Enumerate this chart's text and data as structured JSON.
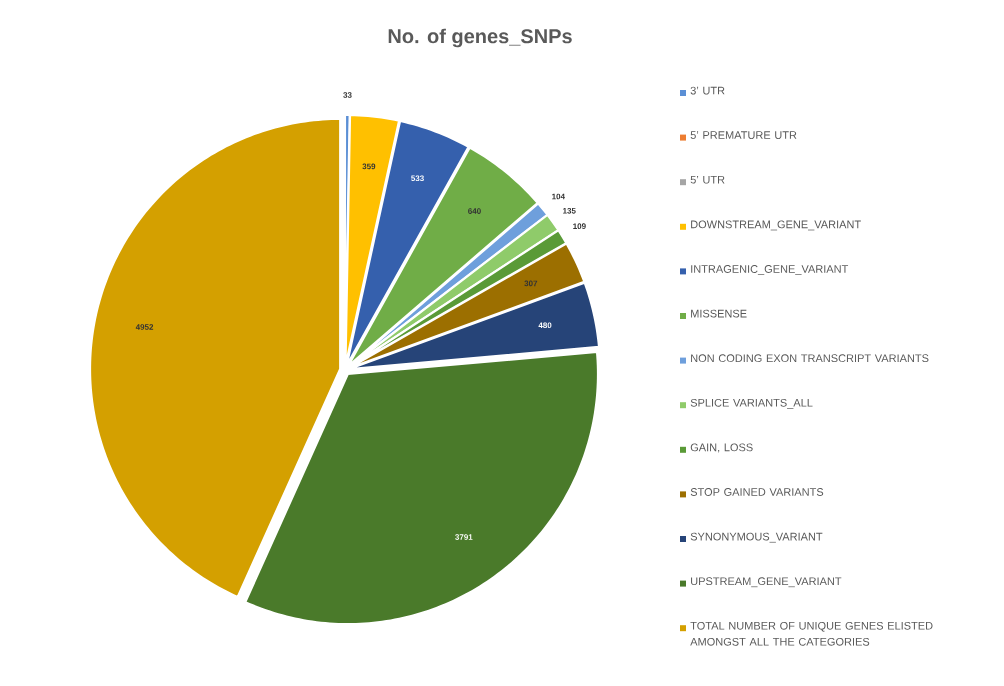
{
  "chart_data": {
    "type": "pie",
    "title": "No. of genes_SNPs",
    "categories": [
      "3’ UTR",
      "5’ PREMATURE UTR",
      "5’ UTR",
      "DOWNSTREAM_GENE_VARIANT",
      "INTRAGENIC_GENE_VARIANT",
      "MISSENSE",
      "NON CODING EXON TRANSCRIPT VARIANTS",
      "SPLICE VARIANTS_ALL",
      "GAIN, LOSS",
      "STOP GAINED VARIANTS",
      "SYNONYMOUS_VARIANT",
      "UPSTREAM_GENE_VARIANT",
      "TOTAL NUMBER OF UNIQUE GENES ELISTED AMONGST ALL THE CATEGORIES"
    ],
    "values": [
      33,
      0,
      0,
      359,
      533,
      640,
      104,
      135,
      109,
      307,
      480,
      3791,
      4952
    ],
    "colors": [
      "#5b8fd5",
      "#ed7d31",
      "#a5a5a5",
      "#ffc000",
      "#3560ad",
      "#70ad47",
      "#6e9fdc",
      "#8fcb6a",
      "#5a9a37",
      "#9c6f00",
      "#264478",
      "#4a7a2a",
      "#d4a000"
    ],
    "data_labels": true,
    "legend": "right"
  }
}
